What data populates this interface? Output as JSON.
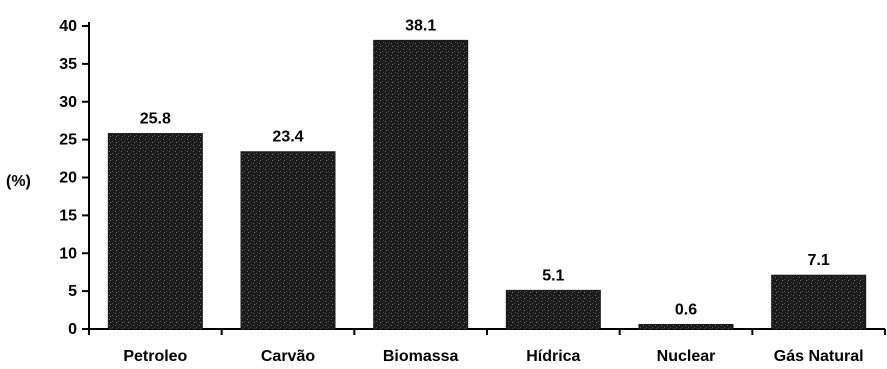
{
  "chart_data": {
    "type": "bar",
    "categories": [
      "Petroleo",
      "Carvão",
      "Biomassa",
      "Hídrica",
      "Nuclear",
      "Gás Natural"
    ],
    "values": [
      25.8,
      23.4,
      38.1,
      5.1,
      0.6,
      7.1
    ],
    "value_labels": [
      "25.8",
      "23.4",
      "38.1",
      "5.1",
      "0.6",
      "7.1"
    ],
    "ylabel": "(%)",
    "xlabel": "",
    "title": "",
    "ylim": [
      0,
      40
    ],
    "yticks": [
      0,
      5,
      10,
      15,
      20,
      25,
      30,
      35,
      40
    ],
    "grid": false,
    "bar_color": "#1a1a1a"
  }
}
